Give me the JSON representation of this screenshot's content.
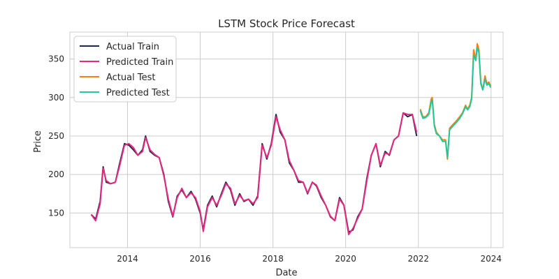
{
  "chart_data": {
    "type": "line",
    "title": "LSTM Stock Price Forecast",
    "xlabel": "Date",
    "ylabel": "Price",
    "xlim": [
      "2012-06-01",
      "2024-05-01"
    ],
    "ylim": [
      105,
      385
    ],
    "x_ticks": [
      "2014",
      "2016",
      "2018",
      "2020",
      "2022",
      "2024"
    ],
    "y_ticks": [
      150,
      200,
      250,
      300,
      350
    ],
    "grid": true,
    "legend_position": "top-left",
    "series": [
      {
        "name": "Actual Train",
        "color": "#1b2a4a",
        "x": [
          "2013-01-01",
          "2013-02-15",
          "2013-04-01",
          "2013-05-01",
          "2013-06-01",
          "2013-07-15",
          "2013-09-01",
          "2013-10-15",
          "2013-12-01",
          "2014-01-15",
          "2014-03-01",
          "2014-04-15",
          "2014-06-01",
          "2014-07-01",
          "2014-08-15",
          "2014-10-01",
          "2014-11-15",
          "2015-01-01",
          "2015-02-15",
          "2015-04-01",
          "2015-05-15",
          "2015-07-01",
          "2015-08-15",
          "2015-10-01",
          "2015-11-15",
          "2016-01-01",
          "2016-02-01",
          "2016-03-15",
          "2016-05-01",
          "2016-06-15",
          "2016-08-01",
          "2016-09-15",
          "2016-11-01",
          "2016-12-15",
          "2017-02-01",
          "2017-03-15",
          "2017-05-01",
          "2017-06-15",
          "2017-08-01",
          "2017-09-15",
          "2017-11-01",
          "2017-12-15",
          "2018-02-01",
          "2018-03-15",
          "2018-05-01",
          "2018-06-15",
          "2018-08-01",
          "2018-09-15",
          "2018-11-01",
          "2018-12-15",
          "2019-02-01",
          "2019-03-15",
          "2019-05-01",
          "2019-06-15",
          "2019-08-01",
          "2019-09-15",
          "2019-11-01",
          "2019-12-15",
          "2020-02-01",
          "2020-03-15",
          "2020-05-01",
          "2020-06-15",
          "2020-08-01",
          "2020-09-15",
          "2020-11-01",
          "2020-12-15",
          "2021-02-01",
          "2021-03-15",
          "2021-05-01",
          "2021-06-15",
          "2021-08-01",
          "2021-09-15",
          "2021-11-01",
          "2021-12-15"
        ],
        "values": [
          148,
          142,
          165,
          210,
          190,
          188,
          190,
          215,
          240,
          238,
          232,
          225,
          232,
          250,
          230,
          225,
          222,
          200,
          165,
          145,
          172,
          180,
          170,
          178,
          168,
          150,
          128,
          160,
          172,
          158,
          175,
          190,
          180,
          160,
          175,
          165,
          168,
          160,
          172,
          240,
          220,
          240,
          278,
          255,
          245,
          215,
          205,
          190,
          190,
          175,
          190,
          185,
          170,
          160,
          145,
          140,
          170,
          160,
          125,
          128,
          145,
          155,
          195,
          225,
          240,
          210,
          230,
          225,
          245,
          250,
          280,
          275,
          278,
          250
        ]
      },
      {
        "name": "Predicted Train",
        "color": "#e8287f",
        "x": [
          "2013-01-01",
          "2013-02-15",
          "2013-04-01",
          "2013-05-01",
          "2013-06-01",
          "2013-07-15",
          "2013-09-01",
          "2013-10-15",
          "2013-12-01",
          "2014-01-15",
          "2014-03-01",
          "2014-04-15",
          "2014-06-01",
          "2014-07-01",
          "2014-08-15",
          "2014-10-01",
          "2014-11-15",
          "2015-01-01",
          "2015-02-15",
          "2015-04-01",
          "2015-05-15",
          "2015-07-01",
          "2015-08-15",
          "2015-10-01",
          "2015-11-15",
          "2016-01-01",
          "2016-02-01",
          "2016-03-15",
          "2016-05-01",
          "2016-06-15",
          "2016-08-01",
          "2016-09-15",
          "2016-11-01",
          "2016-12-15",
          "2017-02-01",
          "2017-03-15",
          "2017-05-01",
          "2017-06-15",
          "2017-08-01",
          "2017-09-15",
          "2017-11-01",
          "2017-12-15",
          "2018-02-01",
          "2018-03-15",
          "2018-05-01",
          "2018-06-15",
          "2018-08-01",
          "2018-09-15",
          "2018-11-01",
          "2018-12-15",
          "2019-02-01",
          "2019-03-15",
          "2019-05-01",
          "2019-06-15",
          "2019-08-01",
          "2019-09-15",
          "2019-11-01",
          "2019-12-15",
          "2020-02-01",
          "2020-03-15",
          "2020-05-01",
          "2020-06-15",
          "2020-08-01",
          "2020-09-15",
          "2020-11-01",
          "2020-12-15",
          "2021-02-01",
          "2021-03-15",
          "2021-05-01",
          "2021-06-15",
          "2021-08-01",
          "2021-09-15",
          "2021-11-01",
          "2021-12-15"
        ],
        "values": [
          148,
          140,
          162,
          208,
          192,
          188,
          190,
          212,
          238,
          240,
          235,
          225,
          230,
          248,
          232,
          226,
          222,
          198,
          168,
          146,
          170,
          182,
          170,
          176,
          170,
          152,
          126,
          158,
          170,
          160,
          173,
          188,
          182,
          162,
          173,
          166,
          168,
          162,
          170,
          238,
          222,
          238,
          275,
          258,
          245,
          218,
          205,
          192,
          190,
          176,
          190,
          186,
          172,
          160,
          146,
          140,
          168,
          160,
          122,
          130,
          143,
          155,
          192,
          225,
          240,
          212,
          228,
          226,
          245,
          250,
          280,
          278,
          278,
          255
        ]
      },
      {
        "name": "Actual Test",
        "color": "#ff7f0e",
        "x": [
          "2022-01-20",
          "2022-02-15",
          "2022-03-15",
          "2022-04-15",
          "2022-05-10",
          "2022-05-20",
          "2022-06-10",
          "2022-07-01",
          "2022-08-01",
          "2022-09-01",
          "2022-10-01",
          "2022-10-20",
          "2022-11-10",
          "2022-12-15",
          "2023-01-20",
          "2023-02-20",
          "2023-03-20",
          "2023-04-20",
          "2023-05-10",
          "2023-06-01",
          "2023-06-20",
          "2023-07-10",
          "2023-08-01",
          "2023-08-15",
          "2023-09-01",
          "2023-09-20",
          "2023-10-10",
          "2023-11-01",
          "2023-11-20",
          "2023-12-10",
          "2023-12-28"
        ],
        "values": [
          285,
          275,
          275,
          280,
          298,
          300,
          265,
          255,
          250,
          245,
          245,
          220,
          260,
          265,
          270,
          275,
          280,
          290,
          285,
          290,
          300,
          362,
          350,
          370,
          362,
          320,
          310,
          328,
          318,
          320,
          315
        ]
      },
      {
        "name": "Predicted Test",
        "color": "#1ec99a",
        "x": [
          "2022-01-20",
          "2022-02-15",
          "2022-03-15",
          "2022-04-15",
          "2022-05-10",
          "2022-05-20",
          "2022-06-10",
          "2022-07-01",
          "2022-08-01",
          "2022-09-01",
          "2022-10-01",
          "2022-10-20",
          "2022-11-10",
          "2022-12-15",
          "2023-01-20",
          "2023-02-20",
          "2023-03-20",
          "2023-04-20",
          "2023-05-10",
          "2023-06-01",
          "2023-06-20",
          "2023-07-10",
          "2023-08-01",
          "2023-08-15",
          "2023-09-01",
          "2023-09-20",
          "2023-10-10",
          "2023-11-01",
          "2023-11-20",
          "2023-12-10",
          "2023-12-28"
        ],
        "values": [
          283,
          273,
          274,
          278,
          294,
          297,
          263,
          253,
          250,
          243,
          243,
          222,
          258,
          263,
          268,
          273,
          279,
          288,
          284,
          288,
          298,
          355,
          348,
          365,
          358,
          318,
          310,
          324,
          316,
          318,
          313
        ]
      }
    ]
  }
}
